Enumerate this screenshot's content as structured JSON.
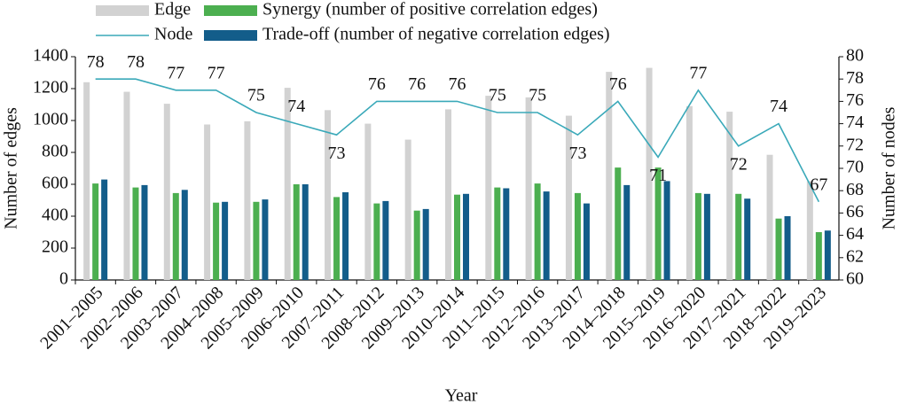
{
  "chart_data": {
    "type": "bar-line",
    "categories": [
      "2001–2005",
      "2002–2006",
      "2003–2007",
      "2004–2008",
      "2005–2009",
      "2006–2010",
      "2007–2011",
      "2008–2012",
      "2009–2013",
      "2010–2014",
      "2011–2015",
      "2012–2016",
      "2013–2017",
      "2014–2018",
      "2015–2019",
      "2016–2020",
      "2017–2021",
      "2018–2022",
      "2019–2023"
    ],
    "series": [
      {
        "name": "Edge",
        "type": "bar",
        "color": "#d2d2d2",
        "values": [
          1240,
          1180,
          1105,
          975,
          995,
          1205,
          1065,
          980,
          880,
          1070,
          1155,
          1145,
          1030,
          1305,
          1330,
          1090,
          1055,
          785,
          620
        ]
      },
      {
        "name": "Synergy (number of positive correlation edges)",
        "type": "bar",
        "color": "#4caf50",
        "values": [
          605,
          580,
          545,
          485,
          490,
          600,
          520,
          480,
          435,
          535,
          580,
          605,
          545,
          705,
          705,
          545,
          540,
          385,
          300
        ]
      },
      {
        "name": "Trade-off (number of negative correlation edges)",
        "type": "bar",
        "color": "#135d8a",
        "values": [
          630,
          595,
          565,
          490,
          505,
          600,
          550,
          495,
          445,
          540,
          575,
          555,
          480,
          595,
          620,
          540,
          510,
          400,
          310
        ]
      },
      {
        "name": "Node",
        "type": "line",
        "axis": "y2",
        "color": "#3aa9b9",
        "values": [
          78,
          78,
          77,
          77,
          75,
          74,
          73,
          76,
          76,
          76,
          75,
          75,
          73,
          76,
          71,
          77,
          72,
          74,
          67
        ]
      }
    ],
    "x_label": "Year",
    "y_label": "Number of edges",
    "y2_label": "Number of nodes",
    "ylim": [
      0,
      1400
    ],
    "yticks": [
      0,
      200,
      400,
      600,
      800,
      1000,
      1200,
      1400
    ],
    "y2lim": [
      60,
      80
    ],
    "y2ticks": [
      60,
      62,
      64,
      66,
      68,
      70,
      72,
      74,
      76,
      78,
      80
    ]
  }
}
